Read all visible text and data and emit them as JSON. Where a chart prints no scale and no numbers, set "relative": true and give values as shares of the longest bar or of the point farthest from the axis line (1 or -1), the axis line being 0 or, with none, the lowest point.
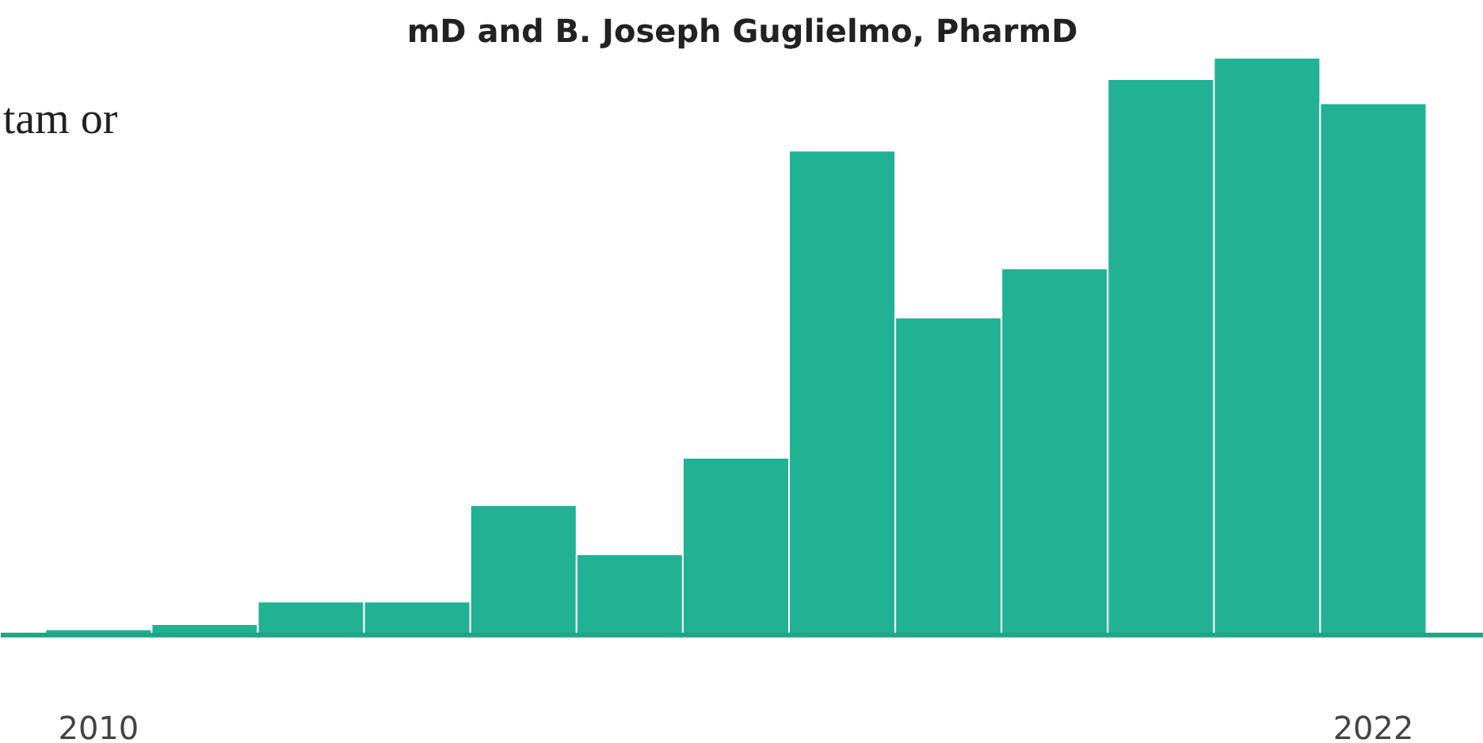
{
  "chart_data": {
    "type": "bar",
    "relative": true,
    "categories": [
      "2010",
      null,
      null,
      null,
      null,
      null,
      null,
      null,
      null,
      null,
      null,
      null,
      "2022"
    ],
    "values": [
      0.01,
      0.019,
      0.058,
      0.058,
      0.225,
      0.14,
      0.307,
      0.839,
      0.55,
      0.635,
      0.963,
      1,
      0.921
    ],
    "color": "#21b293",
    "annotations": [
      "tam or",
      "mD and B. Joseph Guglielmo, PharmD"
    ],
    "grid": false
  }
}
